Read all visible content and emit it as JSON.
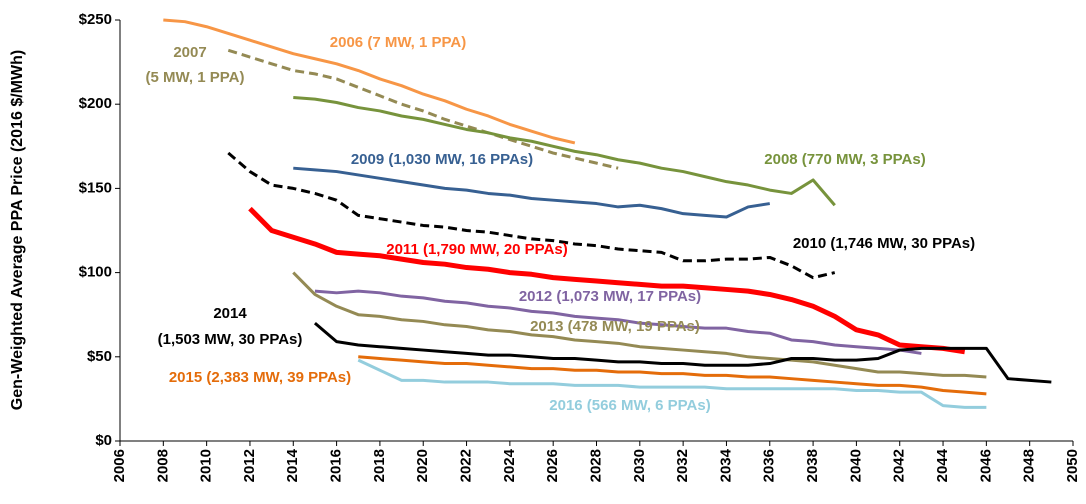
{
  "chart_data": {
    "type": "line",
    "y_label": "Gen-Weighted Average PPA Price (2016 $/MWh)",
    "xlim": [
      2006,
      2050
    ],
    "xticks": [
      2006,
      2008,
      2010,
      2012,
      2014,
      2016,
      2018,
      2020,
      2022,
      2024,
      2026,
      2028,
      2030,
      2032,
      2034,
      2036,
      2038,
      2040,
      2042,
      2044,
      2046,
      2048,
      2050
    ],
    "ylim": [
      0,
      250
    ],
    "yticks": [
      {
        "value": 0,
        "label": "$0"
      },
      {
        "value": 50,
        "label": "$50"
      },
      {
        "value": 100,
        "label": "$100"
      },
      {
        "value": 150,
        "label": "$150"
      },
      {
        "value": 200,
        "label": "$200"
      },
      {
        "value": 250,
        "label": "$250"
      }
    ],
    "grid": false,
    "series": [
      {
        "label_lines": [
          "2006 (7 MW, 1 PPA)"
        ],
        "color": "#f79646",
        "dash": false,
        "x": [
          2008,
          2009,
          2010,
          2011,
          2012,
          2013,
          2014,
          2015,
          2016,
          2017,
          2018,
          2019,
          2020,
          2021,
          2022,
          2023,
          2024,
          2025,
          2026,
          2027
        ],
        "values": [
          250,
          249,
          246,
          242,
          238,
          234,
          230,
          227,
          224,
          220,
          215,
          211,
          206,
          202,
          197,
          193,
          188,
          184,
          180,
          177
        ]
      },
      {
        "label_lines": [
          "2007",
          "(5 MW, 1 PPA)"
        ],
        "color": "#948a54",
        "dash": true,
        "x": [
          2011,
          2012,
          2013,
          2014,
          2015,
          2016,
          2017,
          2018,
          2019,
          2020,
          2021,
          2022,
          2023,
          2024,
          2025,
          2026,
          2027,
          2028,
          2029
        ],
        "values": [
          232,
          228,
          224,
          220,
          218,
          215,
          210,
          205,
          200,
          196,
          191,
          187,
          183,
          179,
          175,
          171,
          168,
          165,
          162
        ]
      },
      {
        "label_lines": [
          "2008 (770 MW, 3 PPAs)"
        ],
        "color": "#77933c",
        "dash": false,
        "x": [
          2014,
          2015,
          2016,
          2017,
          2018,
          2019,
          2020,
          2021,
          2022,
          2023,
          2024,
          2025,
          2026,
          2027,
          2028,
          2029,
          2030,
          2031,
          2032,
          2033,
          2034,
          2035,
          2036,
          2037,
          2038,
          2039
        ],
        "values": [
          204,
          203,
          201,
          198,
          196,
          193,
          191,
          188,
          185,
          183,
          180,
          178,
          175,
          172,
          170,
          167,
          165,
          162,
          160,
          157,
          154,
          152,
          149,
          147,
          155,
          140
        ]
      },
      {
        "label_lines": [
          "2009 (1,030 MW, 16 PPAs)"
        ],
        "color": "#376092",
        "dash": false,
        "x": [
          2014,
          2015,
          2016,
          2017,
          2018,
          2019,
          2020,
          2021,
          2022,
          2023,
          2024,
          2025,
          2026,
          2027,
          2028,
          2029,
          2030,
          2031,
          2032,
          2033,
          2034,
          2035,
          2036
        ],
        "values": [
          162,
          161,
          160,
          158,
          156,
          154,
          152,
          150,
          149,
          147,
          146,
          144,
          143,
          142,
          141,
          139,
          140,
          138,
          135,
          134,
          133,
          139,
          141
        ]
      },
      {
        "label_lines": [
          "2010 (1,746 MW, 30 PPAs)"
        ],
        "color": "#000000",
        "dash": true,
        "x": [
          2011,
          2012,
          2013,
          2014,
          2015,
          2016,
          2017,
          2018,
          2019,
          2020,
          2021,
          2022,
          2023,
          2024,
          2025,
          2026,
          2027,
          2028,
          2029,
          2030,
          2031,
          2032,
          2033,
          2034,
          2035,
          2036,
          2037,
          2038,
          2039
        ],
        "values": [
          171,
          160,
          152,
          150,
          147,
          143,
          134,
          132,
          130,
          128,
          127,
          125,
          124,
          122,
          120,
          119,
          117,
          116,
          114,
          113,
          112,
          107,
          107,
          108,
          108,
          109,
          104,
          97,
          100
        ]
      },
      {
        "label_lines": [
          "2011 (1,790 MW, 20 PPAs)"
        ],
        "color": "#ff0000",
        "dash": false,
        "thick": true,
        "x": [
          2012,
          2013,
          2014,
          2015,
          2016,
          2017,
          2018,
          2019,
          2020,
          2021,
          2022,
          2023,
          2024,
          2025,
          2026,
          2027,
          2028,
          2029,
          2030,
          2031,
          2032,
          2033,
          2034,
          2035,
          2036,
          2037,
          2038,
          2039,
          2040,
          2041,
          2042,
          2043,
          2044,
          2045
        ],
        "values": [
          138,
          125,
          121,
          117,
          112,
          111,
          110,
          108,
          106,
          105,
          103,
          102,
          100,
          99,
          97,
          96,
          95,
          94,
          93,
          92,
          92,
          91,
          90,
          89,
          87,
          84,
          80,
          74,
          66,
          63,
          57,
          56,
          55,
          53
        ]
      },
      {
        "label_lines": [
          "2012 (1,073 MW, 17 PPAs)"
        ],
        "color": "#8064a2",
        "dash": false,
        "x": [
          2015,
          2016,
          2017,
          2018,
          2019,
          2020,
          2021,
          2022,
          2023,
          2024,
          2025,
          2026,
          2027,
          2028,
          2029,
          2030,
          2031,
          2032,
          2033,
          2034,
          2035,
          2036,
          2037,
          2038,
          2039,
          2040,
          2041,
          2042,
          2043
        ],
        "values": [
          89,
          88,
          89,
          88,
          86,
          85,
          83,
          82,
          80,
          79,
          77,
          76,
          74,
          73,
          72,
          70,
          69,
          68,
          67,
          67,
          65,
          64,
          60,
          59,
          57,
          56,
          55,
          54,
          52
        ]
      },
      {
        "label_lines": [
          "2013 (478 MW, 19 PPAs)"
        ],
        "color": "#948a54",
        "dash": false,
        "x": [
          2014,
          2015,
          2016,
          2017,
          2018,
          2019,
          2020,
          2021,
          2022,
          2023,
          2024,
          2025,
          2026,
          2027,
          2028,
          2029,
          2030,
          2031,
          2032,
          2033,
          2034,
          2035,
          2036,
          2037,
          2038,
          2039,
          2040,
          2041,
          2042,
          2043,
          2044,
          2045,
          2046
        ],
        "values": [
          100,
          87,
          80,
          75,
          74,
          72,
          71,
          69,
          68,
          66,
          65,
          63,
          62,
          60,
          59,
          58,
          56,
          55,
          54,
          53,
          52,
          50,
          49,
          48,
          47,
          45,
          43,
          41,
          41,
          40,
          39,
          39,
          38
        ]
      },
      {
        "label_lines": [
          "2014",
          "(1,503 MW, 30 PPAs)"
        ],
        "color": "#000000",
        "dash": false,
        "x": [
          2015,
          2016,
          2017,
          2018,
          2019,
          2020,
          2021,
          2022,
          2023,
          2024,
          2025,
          2026,
          2027,
          2028,
          2029,
          2030,
          2031,
          2032,
          2033,
          2034,
          2035,
          2036,
          2037,
          2038,
          2039,
          2040,
          2041,
          2042,
          2043,
          2044,
          2045,
          2046,
          2047,
          2048,
          2049
        ],
        "values": [
          70,
          59,
          57,
          56,
          55,
          54,
          53,
          52,
          51,
          51,
          50,
          49,
          49,
          48,
          47,
          47,
          46,
          46,
          45,
          45,
          45,
          46,
          49,
          49,
          48,
          48,
          49,
          54,
          55,
          55,
          55,
          55,
          37,
          36,
          35
        ]
      },
      {
        "label_lines": [
          "2015 (2,383 MW, 39 PPAs)"
        ],
        "color": "#e46c0a",
        "dash": false,
        "x": [
          2017,
          2018,
          2019,
          2020,
          2021,
          2022,
          2023,
          2024,
          2025,
          2026,
          2027,
          2028,
          2029,
          2030,
          2031,
          2032,
          2033,
          2034,
          2035,
          2036,
          2037,
          2038,
          2039,
          2040,
          2041,
          2042,
          2043,
          2044,
          2045,
          2046
        ],
        "values": [
          50,
          49,
          48,
          47,
          46,
          46,
          45,
          44,
          43,
          43,
          42,
          42,
          41,
          41,
          40,
          40,
          39,
          39,
          38,
          38,
          37,
          36,
          35,
          34,
          33,
          33,
          32,
          30,
          29,
          28
        ]
      },
      {
        "label_lines": [
          "2016 (566 MW, 6 PPAs)"
        ],
        "color": "#93cddd",
        "dash": false,
        "x": [
          2017,
          2018,
          2019,
          2020,
          2021,
          2022,
          2023,
          2024,
          2025,
          2026,
          2027,
          2028,
          2029,
          2030,
          2031,
          2032,
          2033,
          2034,
          2035,
          2036,
          2037,
          2038,
          2039,
          2040,
          2041,
          2042,
          2043,
          2044,
          2045,
          2046
        ],
        "values": [
          48,
          42,
          36,
          36,
          35,
          35,
          35,
          34,
          34,
          34,
          33,
          33,
          33,
          32,
          32,
          32,
          32,
          31,
          31,
          31,
          31,
          31,
          31,
          30,
          30,
          29,
          29,
          21,
          20,
          20
        ]
      }
    ]
  }
}
